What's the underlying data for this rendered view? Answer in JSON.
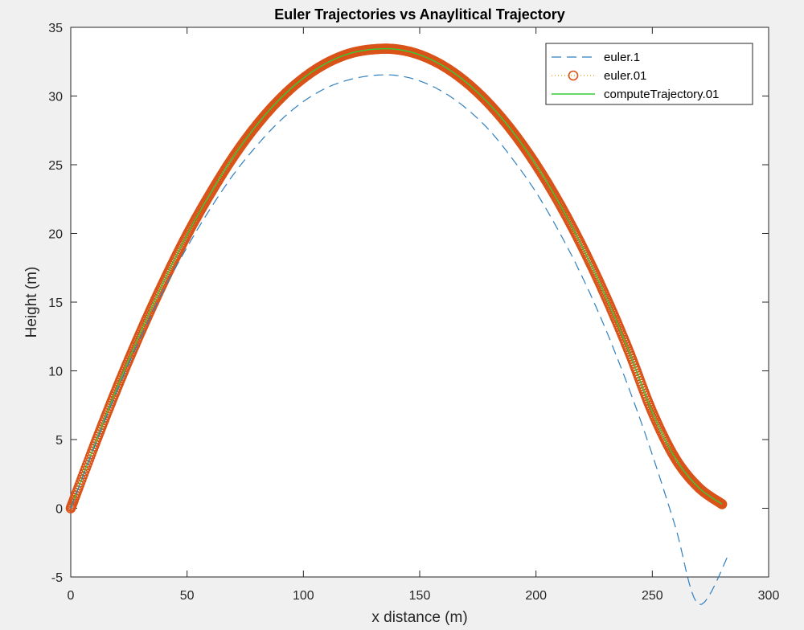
{
  "chart_data": {
    "type": "line",
    "title": "Euler Trajectories vs Anaylitical Trajectory",
    "xlabel": "x distance (m)",
    "ylabel": "Height (m)",
    "xlim": [
      0,
      300
    ],
    "ylim": [
      -5,
      35
    ],
    "xticks": [
      0,
      50,
      100,
      150,
      200,
      250,
      300
    ],
    "yticks": [
      -5,
      0,
      5,
      10,
      15,
      20,
      25,
      30,
      35
    ],
    "grid": false,
    "legend_position": "top-right",
    "colors": {
      "euler1": "#2f7fbf",
      "euler01": "#d95319",
      "euler01_line": "#edb120",
      "analytic": "#33cc33",
      "axes_bg": "#ffffff",
      "figure_bg": "#f0f0f0"
    },
    "series": [
      {
        "name": "euler.1",
        "style": "dashed",
        "x": [
          0,
          10,
          20,
          30,
          40,
          50,
          60,
          70,
          80,
          90,
          100,
          110,
          120,
          130,
          140,
          150,
          160,
          170,
          180,
          190,
          200,
          210,
          220,
          230,
          240,
          250,
          260,
          270,
          283
        ],
        "y": [
          0,
          4.4,
          8.6,
          12.4,
          15.9,
          19.0,
          21.8,
          24.3,
          26.4,
          28.2,
          29.6,
          30.6,
          31.2,
          31.5,
          31.5,
          31.1,
          30.3,
          29.1,
          27.5,
          25.4,
          23.0,
          20.1,
          16.8,
          13.0,
          8.7,
          3.9,
          -1.4,
          -7.0,
          -3.3
        ]
      },
      {
        "name": "euler.01",
        "style": "dotted-circles",
        "x": [
          0,
          10,
          20,
          30,
          40,
          50,
          60,
          70,
          80,
          90,
          100,
          110,
          120,
          130,
          140,
          150,
          160,
          170,
          180,
          190,
          200,
          210,
          220,
          230,
          240,
          250,
          260,
          270,
          280
        ],
        "y": [
          0,
          4.5,
          8.8,
          12.8,
          16.5,
          19.9,
          22.9,
          25.6,
          27.9,
          29.8,
          31.3,
          32.4,
          33.1,
          33.4,
          33.4,
          33.0,
          32.2,
          31.0,
          29.4,
          27.4,
          25.0,
          22.2,
          19.0,
          15.4,
          11.4,
          7.0,
          3.6,
          1.5,
          0.3
        ]
      },
      {
        "name": "computeTrajectory.01",
        "style": "solid",
        "x": [
          0,
          10,
          20,
          30,
          40,
          50,
          60,
          70,
          80,
          90,
          100,
          110,
          120,
          130,
          140,
          150,
          160,
          170,
          180,
          190,
          200,
          210,
          220,
          230,
          240,
          250,
          260,
          270,
          280
        ],
        "y": [
          0,
          4.5,
          8.8,
          12.8,
          16.5,
          19.9,
          22.9,
          25.6,
          27.9,
          29.8,
          31.3,
          32.4,
          33.1,
          33.4,
          33.4,
          33.0,
          32.2,
          31.0,
          29.4,
          27.4,
          25.0,
          22.2,
          19.0,
          15.4,
          11.4,
          7.0,
          3.6,
          1.5,
          0.3
        ]
      }
    ]
  }
}
